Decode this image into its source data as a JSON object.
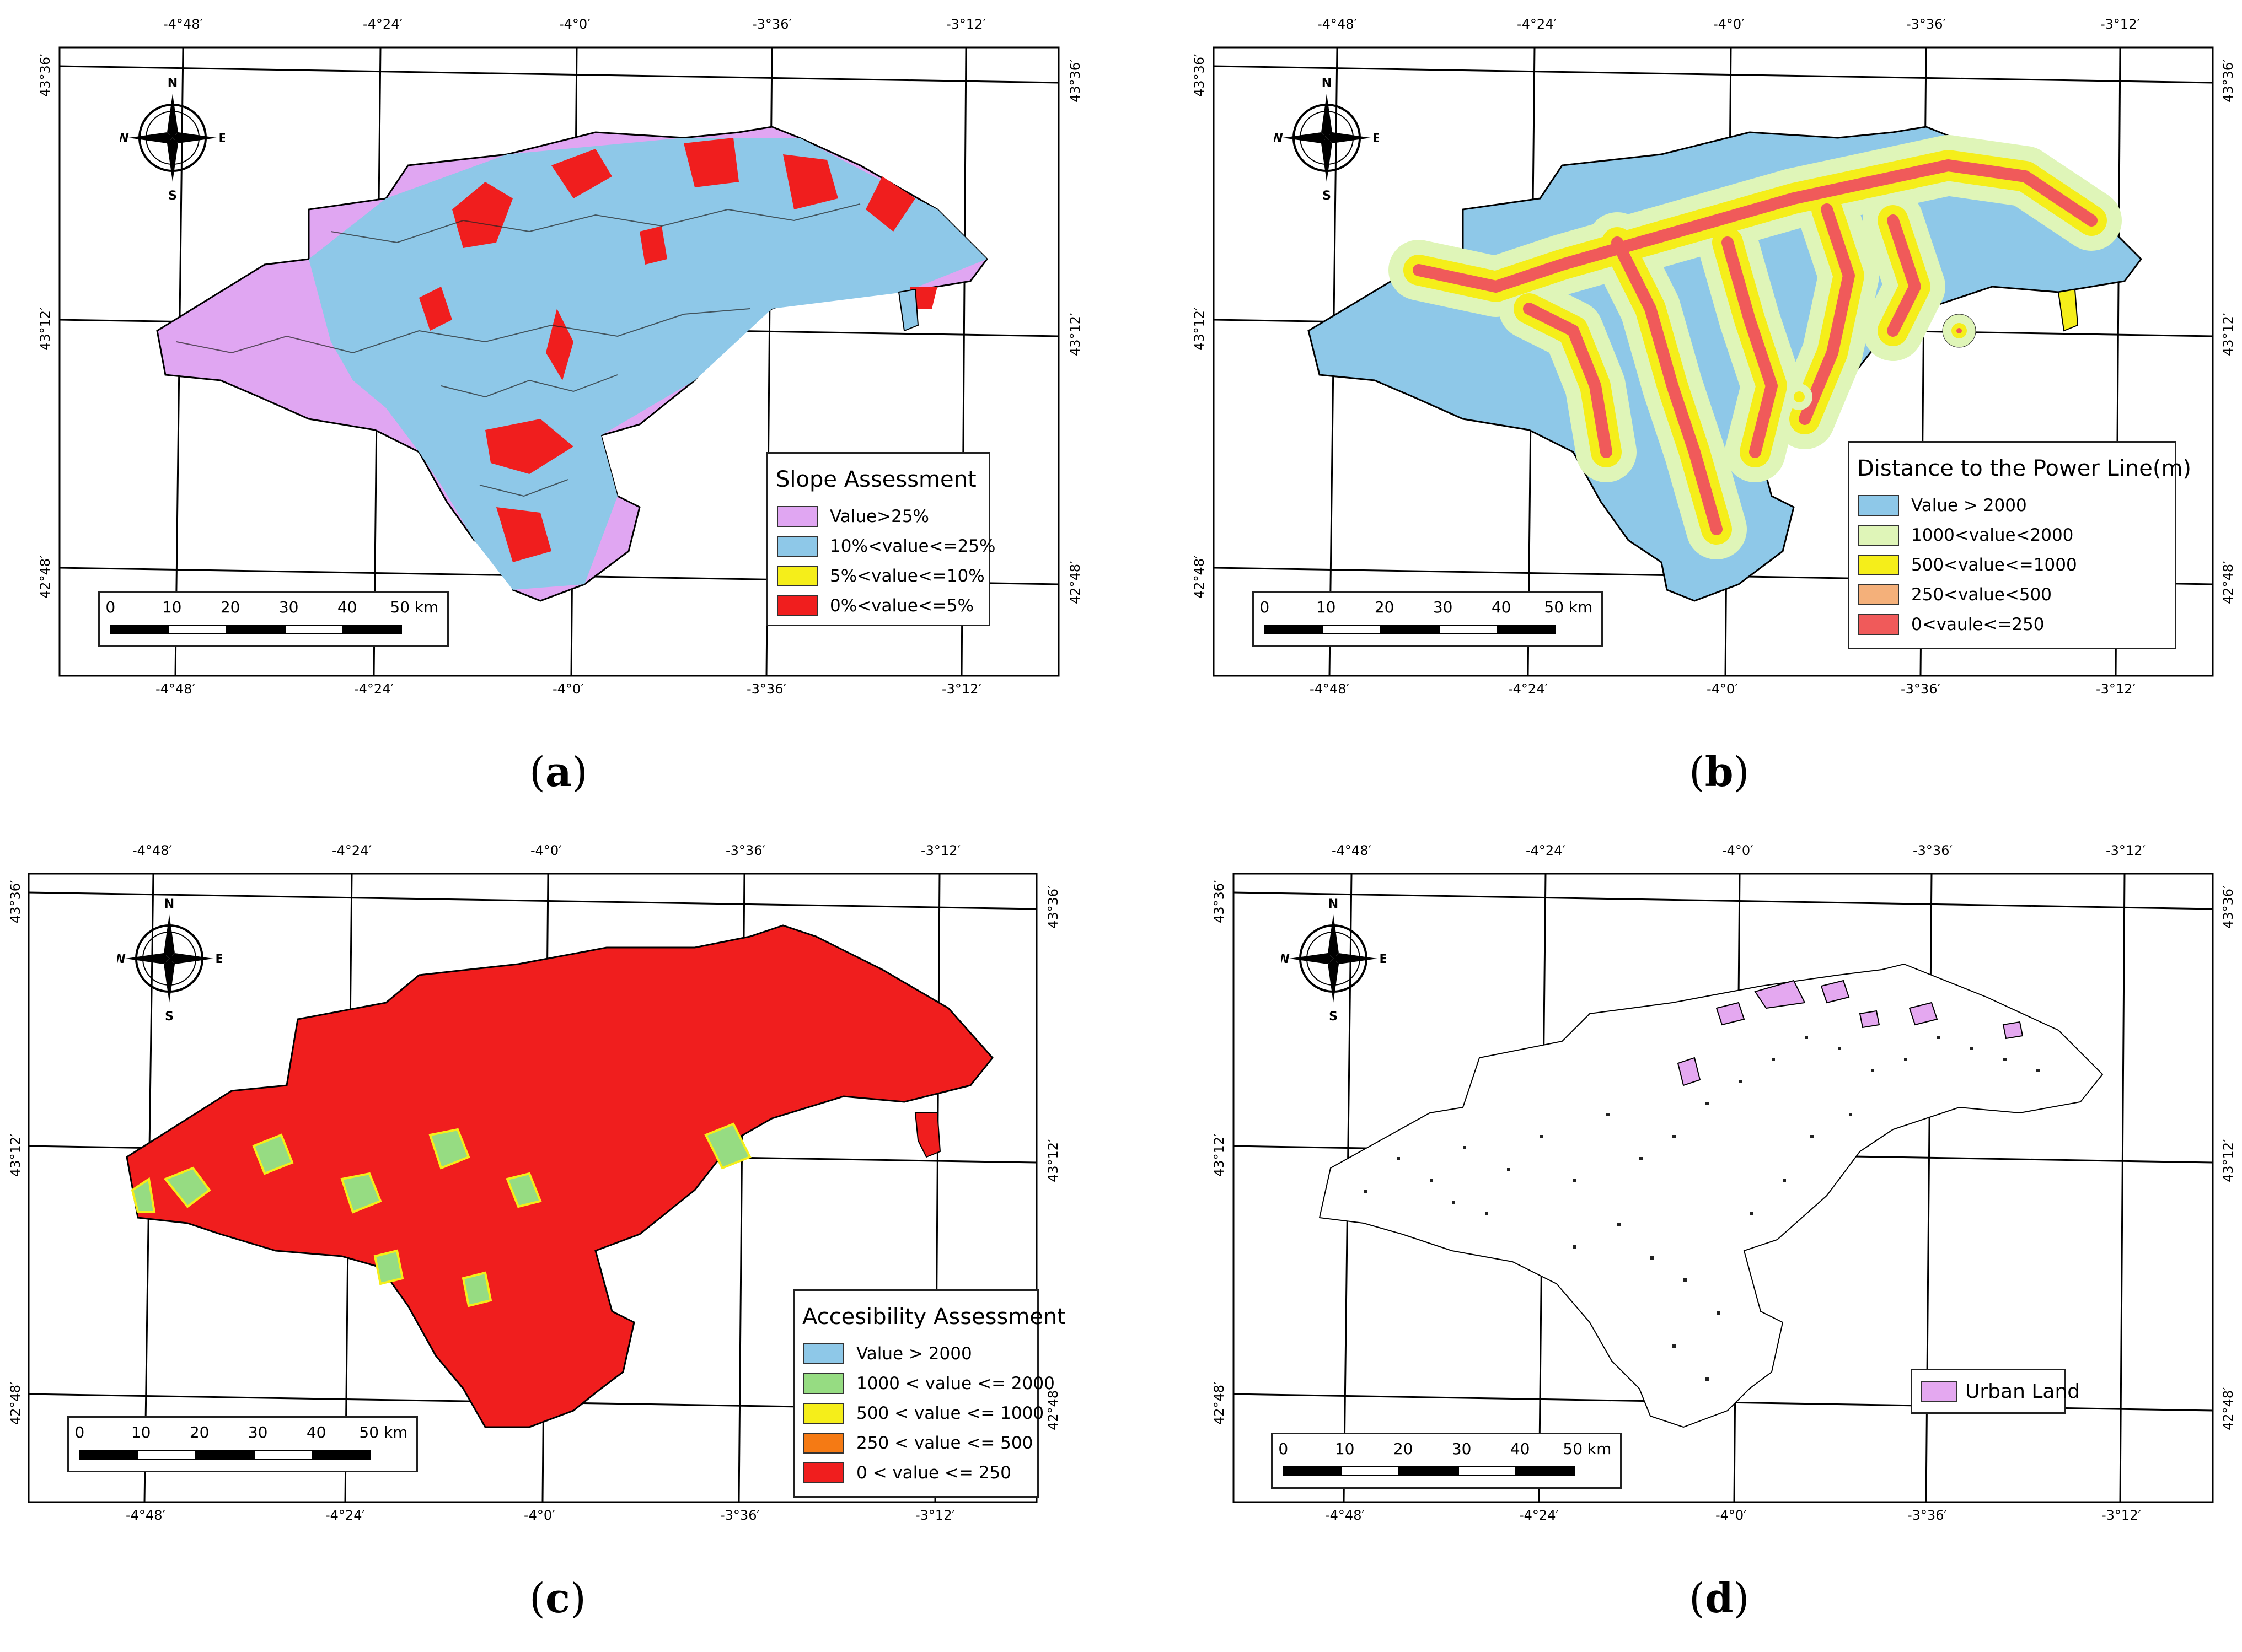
{
  "coords": {
    "lon_labels": [
      "-4°48′",
      "-4°24′",
      "-4°0′",
      "-3°36′",
      "-3°12′"
    ],
    "lat_labels": [
      "43°36′",
      "43°12′",
      "42°48′"
    ]
  },
  "compass": {
    "n": "N",
    "s": "S",
    "e": "E",
    "w": "W"
  },
  "scalebar": {
    "ticks": [
      "0",
      "10",
      "20",
      "30",
      "40",
      "50 km"
    ]
  },
  "panels": [
    {
      "label": "a",
      "legend": {
        "title": "Slope Assessment",
        "items": [
          {
            "label": "Value>25%",
            "color": "#e0a6f2"
          },
          {
            "label": "10%<value<=25%",
            "color": "#8ec8e8"
          },
          {
            "label": "5%<value<=10%",
            "color": "#f5ee1a"
          },
          {
            "label": "0%<value<=5%",
            "color": "#f01e1e"
          }
        ]
      }
    },
    {
      "label": "b",
      "legend": {
        "title": "Distance to the Power Line(m)",
        "items": [
          {
            "label": "Value > 2000",
            "color": "#8ec8e8"
          },
          {
            "label": "1000<value<2000",
            "color": "#dff5b8"
          },
          {
            "label": "500<value<=1000",
            "color": "#f5ee1a"
          },
          {
            "label": "250<value<500",
            "color": "#f4b07a"
          },
          {
            "label": "0<vaule<=250",
            "color": "#f05a5a"
          }
        ]
      }
    },
    {
      "label": "c",
      "legend": {
        "title": "Accesibility Assessment",
        "items": [
          {
            "label": "Value > 2000",
            "color": "#8ec8e8"
          },
          {
            "label": "1000 < value <= 2000",
            "color": "#96dc82"
          },
          {
            "label": "500 < value <= 1000",
            "color": "#f5ee1a"
          },
          {
            "label": "250 < value <= 500",
            "color": "#f57a14"
          },
          {
            "label": "0 < value <= 250",
            "color": "#f01e1e"
          }
        ]
      }
    },
    {
      "label": "d",
      "legend": {
        "title": "",
        "items": [
          {
            "label": "Urban Land",
            "color": "#e4a8f0"
          }
        ]
      }
    }
  ]
}
